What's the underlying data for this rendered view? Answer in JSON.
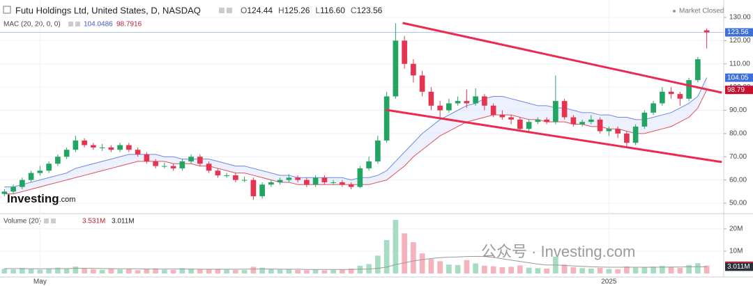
{
  "chart_data": {
    "type": "candlestick",
    "title": "Futu Holdings Ltd, United States, D, NASDAQ",
    "market_status": "Market Closed",
    "ohlc_legend": [
      {
        "key": "O",
        "value": "124.44"
      },
      {
        "key": "H",
        "value": "125.26"
      },
      {
        "key": "L",
        "value": "116.60"
      },
      {
        "key": "C",
        "value": "123.56"
      }
    ],
    "categories": [
      null,
      null,
      null,
      null,
      "May",
      null,
      null,
      null,
      null,
      null,
      null,
      null,
      null,
      null,
      null,
      null,
      null,
      null,
      null,
      null,
      null,
      null,
      null,
      null,
      null,
      null,
      null,
      null,
      null,
      null,
      null,
      null,
      null,
      null,
      null,
      null,
      null,
      null,
      null,
      null,
      null,
      null,
      null,
      null,
      null,
      null,
      null,
      null,
      null,
      null,
      null,
      null,
      null,
      null,
      null,
      null,
      null,
      null,
      null,
      null,
      null,
      null,
      null,
      null,
      null,
      null,
      null,
      null,
      "2025",
      null,
      null,
      null,
      null,
      null,
      null,
      null,
      null,
      null,
      null,
      null
    ],
    "open": [
      54,
      55,
      57,
      60,
      63,
      64,
      67,
      70,
      73,
      77,
      75,
      74,
      74,
      73,
      75,
      73,
      71,
      68,
      66,
      66,
      65,
      68,
      70,
      67,
      64,
      62,
      62,
      60,
      60,
      53,
      58,
      59,
      60,
      61,
      60,
      58,
      61,
      59,
      59,
      58,
      57,
      65,
      68,
      77,
      96,
      120,
      110,
      105,
      98,
      92,
      90,
      93,
      94,
      93,
      96,
      92,
      88,
      87,
      86,
      82,
      85,
      86,
      85,
      94,
      87,
      84,
      85,
      86,
      81,
      82,
      80,
      76,
      83,
      89,
      93,
      98,
      97,
      95,
      103,
      124.44
    ],
    "high": [
      56,
      58,
      61,
      64,
      66,
      68,
      71,
      74,
      79,
      78,
      76,
      75.5,
      75,
      76,
      76,
      74,
      72,
      69,
      67.5,
      67,
      69,
      71,
      71,
      68,
      65,
      63,
      63,
      61.5,
      61,
      59,
      60,
      61,
      62.5,
      62,
      61,
      62,
      62,
      60,
      60,
      59,
      66,
      70,
      79,
      98,
      127.5,
      122,
      112,
      107,
      100,
      94,
      95,
      96,
      99,
      99.5,
      97,
      93,
      90,
      88,
      87,
      86,
      87,
      87,
      105,
      95,
      88,
      86,
      88,
      87,
      83,
      83,
      81,
      84,
      90,
      94,
      100,
      100,
      98,
      104,
      113,
      125.26
    ],
    "low": [
      53,
      54,
      56,
      59,
      62,
      63,
      66,
      69,
      72,
      74,
      73,
      72.5,
      72,
      72,
      72,
      70,
      67,
      65,
      65,
      64,
      64,
      67,
      66,
      63,
      61,
      61,
      59,
      59,
      51.5,
      52,
      57,
      58,
      59,
      59,
      57,
      57,
      58,
      58,
      57,
      56,
      56.5,
      64,
      67,
      76,
      95,
      108,
      102,
      96,
      90,
      86,
      89,
      92,
      91,
      92,
      90,
      87,
      86,
      84,
      81,
      81,
      84,
      84,
      84,
      86,
      83,
      83,
      84,
      80,
      79,
      78,
      74,
      75,
      82,
      88,
      92,
      95,
      92,
      94,
      102,
      116.6
    ],
    "close": [
      55,
      57,
      60,
      63,
      64,
      67,
      70,
      73,
      77,
      75,
      74,
      74,
      73,
      75,
      73,
      71,
      68,
      66,
      66,
      65,
      68,
      70,
      67,
      64,
      62,
      62,
      60,
      60,
      53,
      58,
      59,
      60,
      61,
      60,
      58,
      61,
      59,
      59,
      58,
      57,
      65,
      68,
      77,
      96,
      120,
      110,
      105,
      98,
      92,
      90,
      93,
      94,
      93,
      96,
      92,
      88,
      87,
      86,
      82,
      85,
      86,
      85,
      94,
      87,
      84,
      85,
      86,
      81,
      82,
      80,
      76,
      83,
      89,
      93,
      98,
      97,
      95,
      103,
      112,
      123.56
    ],
    "up_color": "#22a463",
    "down_color": "#e5344f",
    "ylim": [
      46.1,
      134.5
    ],
    "yticks": [
      {
        "value": 130,
        "label": "130.00"
      },
      {
        "value": 120,
        "label": "120.00"
      },
      {
        "value": 110,
        "label": "110.00"
      },
      {
        "value": 100,
        "label": "100.00"
      },
      {
        "value": 90,
        "label": "90.00"
      },
      {
        "value": 80,
        "label": "80.00"
      },
      {
        "value": 70,
        "label": "70.00"
      },
      {
        "value": 60,
        "label": "60.00"
      },
      {
        "value": 50,
        "label": "50.00"
      }
    ],
    "grid": true,
    "mac": {
      "label": "MAC (20, 20, 0, 0)",
      "upper_label": "104.0486",
      "lower_label": "98.7916",
      "upper_color": "#6f86e8",
      "lower_color": "#e0505a",
      "upper": [
        57,
        57,
        58,
        59,
        60,
        61,
        62,
        63,
        65,
        66,
        67,
        68,
        69,
        70,
        71,
        71,
        71,
        71,
        70,
        70,
        69,
        69,
        69,
        69,
        68,
        67,
        66,
        66,
        65,
        64,
        63,
        62,
        62,
        61,
        61,
        61,
        61,
        61,
        61,
        60,
        61,
        61,
        62,
        64,
        68,
        72,
        76,
        80,
        83,
        86,
        88,
        90,
        92,
        93,
        95,
        96,
        96,
        95,
        94,
        93,
        92,
        92,
        91,
        91,
        90,
        89,
        89,
        88,
        88,
        87,
        87,
        86,
        86,
        87,
        88,
        89,
        91,
        93,
        96,
        104.05
      ],
      "lower": [
        54,
        54,
        55,
        56,
        57,
        58,
        59,
        60,
        61,
        62,
        63,
        64,
        65,
        66,
        67,
        68,
        68,
        68,
        68,
        67,
        67,
        67,
        66,
        66,
        65,
        64,
        63,
        63,
        62,
        61,
        60,
        59,
        59,
        58,
        58,
        58,
        58,
        58,
        58,
        58,
        58,
        58,
        59,
        60,
        63,
        66,
        70,
        73,
        76,
        79,
        81,
        83,
        85,
        86,
        87,
        88,
        88,
        88,
        87,
        86,
        86,
        85,
        85,
        85,
        84,
        84,
        83,
        83,
        82,
        82,
        81,
        80,
        80,
        81,
        82,
        83,
        85,
        87,
        91,
        98.79
      ]
    },
    "trendlines": [
      {
        "x": [
          44.8,
          80.7
        ],
        "y": [
          127.6,
          97.6
        ],
        "color": "#ec2a4f"
      },
      {
        "x": [
          42.9,
          80.7
        ],
        "y": [
          90.2,
          67.7
        ],
        "color": "#ec2a4f"
      }
    ],
    "volume": {
      "label": "Volume (20)",
      "values": [
        2.1,
        1.8,
        2.5,
        2.0,
        1.7,
        2.2,
        2.6,
        2.0,
        3.1,
        2.4,
        1.9,
        1.6,
        2.2,
        1.8,
        2.0,
        1.5,
        1.9,
        2.3,
        1.7,
        1.6,
        2.4,
        2.0,
        1.8,
        1.9,
        2.1,
        1.7,
        1.6,
        1.5,
        3.0,
        2.6,
        1.9,
        1.7,
        1.8,
        1.6,
        1.5,
        1.7,
        1.4,
        1.6,
        1.8,
        2.2,
        3.5,
        4.2,
        8.0,
        15.0,
        24.0,
        18.0,
        14.0,
        9.0,
        6.5,
        5.5,
        4.0,
        3.8,
        6.0,
        4.5,
        3.5,
        3.2,
        2.8,
        3.0,
        3.6,
        2.6,
        2.4,
        2.2,
        7.5,
        4.0,
        2.8,
        2.4,
        2.2,
        2.5,
        2.0,
        1.9,
        3.2,
        2.6,
        2.9,
        3.1,
        3.4,
        2.8,
        2.5,
        3.8,
        4.6,
        3.531
      ],
      "ma": [
        2.2,
        2.2,
        2.2,
        2.1,
        2.1,
        2.1,
        2.2,
        2.2,
        2.3,
        2.3,
        2.3,
        2.2,
        2.2,
        2.1,
        2.1,
        2.1,
        2.0,
        2.0,
        2.0,
        2.0,
        2.0,
        2.0,
        1.9,
        1.9,
        1.9,
        1.9,
        1.9,
        1.9,
        2.0,
        2.0,
        2.0,
        1.9,
        1.9,
        1.9,
        1.8,
        1.8,
        1.8,
        1.8,
        1.8,
        1.8,
        1.9,
        2.0,
        2.3,
        2.9,
        4.0,
        4.8,
        5.6,
        6.2,
        6.7,
        7.1,
        7.3,
        7.4,
        7.6,
        7.7,
        7.6,
        7.2,
        6.6,
        6.0,
        5.4,
        4.8,
        4.2,
        3.8,
        3.8,
        3.6,
        3.4,
        3.2,
        3.0,
        2.9,
        2.8,
        2.8,
        2.8,
        2.8,
        2.8,
        2.8,
        2.8,
        2.9,
        2.9,
        3.0,
        3.0,
        3.011
      ],
      "up_color": "#a6dcc2",
      "down_color": "#f5b3bc",
      "ma_color": "#999999",
      "ylim": [
        0,
        25.9
      ],
      "yticks": [
        {
          "value": 20,
          "label": "20M"
        },
        {
          "value": 10,
          "label": "10M"
        }
      ],
      "tags": [
        {
          "value": 3.531,
          "label": "3.531M",
          "color": "#e5344f"
        },
        {
          "value": 3.011,
          "label": "3.011M",
          "color": "#2b2f3a"
        }
      ]
    },
    "logo": {
      "brand": "Investing",
      "suffix": ".com"
    },
    "watermark": "公众号 · Investing.com"
  }
}
